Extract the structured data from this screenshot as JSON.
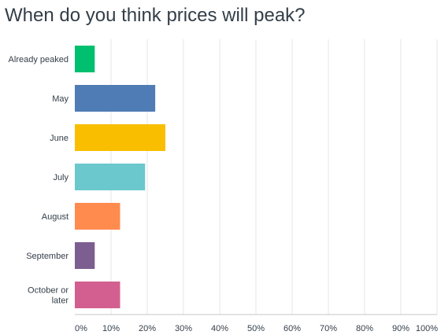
{
  "chart_data": {
    "type": "bar",
    "orientation": "horizontal",
    "title": "When do you think prices will peak?",
    "xlabel": "",
    "ylabel": "",
    "categories": [
      "Already peaked",
      "May",
      "June",
      "July",
      "August",
      "September",
      "October or later"
    ],
    "values": [
      5.5,
      22.2,
      25.0,
      19.4,
      12.5,
      5.5,
      12.5
    ],
    "value_unit": "%",
    "xlim": [
      0,
      100
    ],
    "tick_labels": [
      "0%",
      "10%",
      "20%",
      "30%",
      "40%",
      "50%",
      "60%",
      "70%",
      "80%",
      "90%",
      "100%"
    ],
    "grid": true,
    "legend": "none",
    "colors": [
      "#00bf6f",
      "#507cb6",
      "#f9be00",
      "#6bc8cd",
      "#ff8b4f",
      "#7d5e90",
      "#d25f90"
    ]
  }
}
